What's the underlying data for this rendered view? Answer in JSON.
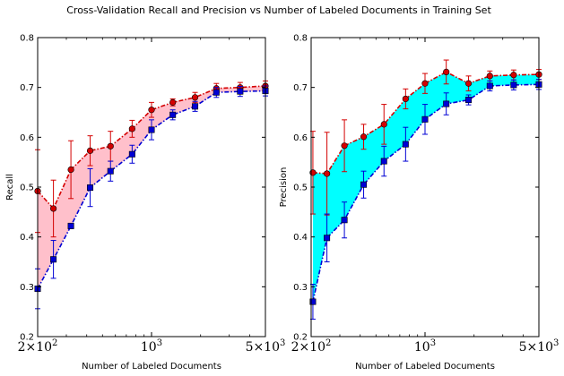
{
  "figure": {
    "title": "Cross-Validation Recall and Precision vs Number of Labeled Documents in Training Set"
  },
  "chart_data": [
    {
      "type": "line",
      "id": "recall",
      "xlabel": "Number of Labeled Documents",
      "ylabel": "Recall",
      "x_scale": "log",
      "xlim": [
        200,
        5000
      ],
      "ylim": [
        0.2,
        0.8
      ],
      "yticks": [
        "0.2",
        "0.3",
        "0.4",
        "0.5",
        "0.6",
        "0.7",
        "0.8"
      ],
      "xticks": [
        {
          "value": 200,
          "base": "2×10",
          "exp": "2"
        },
        {
          "value": 1000,
          "base": "10",
          "exp": "3"
        },
        {
          "value": 5000,
          "base": "5×10",
          "exp": "3"
        }
      ],
      "x": [
        200,
        250,
        320,
        420,
        560,
        760,
        1000,
        1350,
        1850,
        2500,
        3500,
        5000
      ],
      "fill_color": "#ffc0cb",
      "series": [
        {
          "color": "#d40000",
          "marker": "circle",
          "values": [
            0.492,
            0.457,
            0.535,
            0.573,
            0.582,
            0.617,
            0.655,
            0.67,
            0.68,
            0.698,
            0.7,
            0.703
          ],
          "err": [
            0.083,
            0.057,
            0.058,
            0.03,
            0.03,
            0.017,
            0.015,
            0.007,
            0.01,
            0.01,
            0.01,
            0.01
          ]
        },
        {
          "color": "#0000d4",
          "marker": "square",
          "values": [
            0.296,
            0.355,
            0.422,
            0.499,
            0.532,
            0.566,
            0.615,
            0.645,
            0.662,
            0.69,
            0.692,
            0.693
          ],
          "err": [
            0.04,
            0.038,
            0.005,
            0.038,
            0.02,
            0.018,
            0.02,
            0.01,
            0.01,
            0.01,
            0.01,
            0.01
          ]
        }
      ]
    },
    {
      "type": "line",
      "id": "precision",
      "xlabel": "Number of Labeled Documents",
      "ylabel": "Precision",
      "x_scale": "log",
      "xlim": [
        200,
        5000
      ],
      "ylim": [
        0.2,
        0.8
      ],
      "yticks": [
        "0.2",
        "0.3",
        "0.4",
        "0.5",
        "0.6",
        "0.7",
        "0.8"
      ],
      "xticks": [
        {
          "value": 200,
          "base": "2×10",
          "exp": "2"
        },
        {
          "value": 1000,
          "base": "10",
          "exp": "3"
        },
        {
          "value": 5000,
          "base": "5×10",
          "exp": "3"
        }
      ],
      "x": [
        205,
        250,
        320,
        420,
        560,
        760,
        1000,
        1350,
        1850,
        2500,
        3500,
        5000
      ],
      "fill_color": "#00ffff",
      "series": [
        {
          "color": "#d40000",
          "marker": "circle",
          "values": [
            0.529,
            0.527,
            0.583,
            0.601,
            0.626,
            0.677,
            0.708,
            0.731,
            0.708,
            0.723,
            0.725,
            0.726
          ],
          "err": [
            0.083,
            0.083,
            0.052,
            0.025,
            0.04,
            0.02,
            0.02,
            0.024,
            0.015,
            0.01,
            0.01,
            0.01
          ]
        },
        {
          "color": "#0000d4",
          "marker": "square",
          "values": [
            0.27,
            0.398,
            0.434,
            0.505,
            0.552,
            0.586,
            0.636,
            0.667,
            0.675,
            0.703,
            0.705,
            0.706
          ],
          "err": [
            0.035,
            0.048,
            0.036,
            0.027,
            0.03,
            0.034,
            0.03,
            0.022,
            0.01,
            0.01,
            0.01,
            0.01
          ]
        }
      ]
    }
  ]
}
